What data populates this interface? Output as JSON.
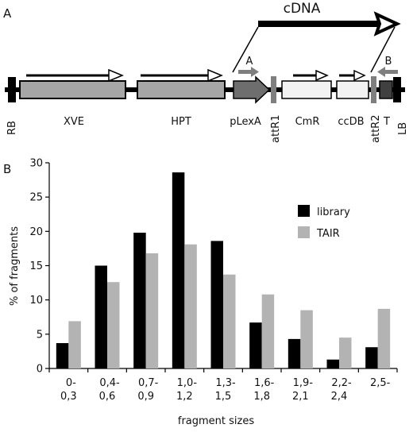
{
  "panels": {
    "a": "A",
    "b": "B"
  },
  "construct": {
    "cdna_label": "cDNA",
    "primer_a": "A",
    "primer_b": "B",
    "elements": [
      "RB",
      "XVE",
      "HPT",
      "pLexA",
      "attR1",
      "CmR",
      "ccDB",
      "attR2",
      "T",
      "LB"
    ],
    "colors": {
      "gene": "#a6a6a6",
      "promoter": "#6e6e6e",
      "marker": "#f2f2f2",
      "terminator": "#404040",
      "primer": "#7f7f7f"
    }
  },
  "chart_data": {
    "type": "bar",
    "xlabel": "fragment sizes",
    "ylabel": "% of fragments",
    "ylim": [
      0,
      30
    ],
    "yticks": [
      0,
      5,
      10,
      15,
      20,
      25,
      30
    ],
    "categories": [
      [
        "0-",
        "0,3"
      ],
      [
        "0,4-",
        "0,6"
      ],
      [
        "0,7-",
        "0,9"
      ],
      [
        "1,0-",
        "1,2"
      ],
      [
        "1,3-",
        "1,5"
      ],
      [
        "1,6-",
        "1,8"
      ],
      [
        "1,9-",
        "2,1"
      ],
      [
        "2,2-",
        "2,4"
      ],
      [
        "2,5-",
        ""
      ]
    ],
    "series": [
      {
        "name": "library",
        "color": "#000000",
        "values": [
          3.7,
          15.0,
          19.8,
          28.6,
          18.6,
          6.7,
          4.3,
          1.3,
          3.1
        ]
      },
      {
        "name": "TAIR",
        "color": "#b3b3b3",
        "values": [
          6.9,
          12.6,
          16.8,
          18.1,
          13.7,
          10.8,
          8.5,
          4.5,
          8.7
        ]
      }
    ],
    "legend": "top-right"
  }
}
